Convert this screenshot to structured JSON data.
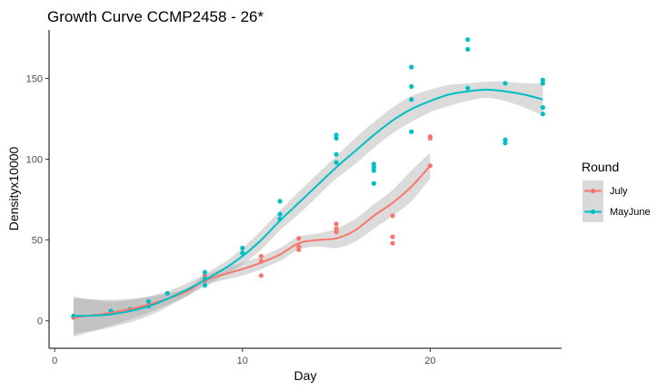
{
  "chart_data": {
    "type": "scatter",
    "title": "Growth Curve CCMP2458 - 26*",
    "xlabel": "Day",
    "ylabel": "Densityx10000",
    "xlim": [
      -0.3,
      27.0
    ],
    "ylim": [
      -17,
      180
    ],
    "x_ticks": [
      0,
      10,
      20
    ],
    "y_ticks": [
      0,
      50,
      100,
      150
    ],
    "grid": false,
    "legend": {
      "title": "Round",
      "position": "right"
    },
    "series": [
      {
        "name": "July",
        "color": "#F8766D",
        "points": [
          [
            1,
            2
          ],
          [
            3,
            5
          ],
          [
            4,
            7
          ],
          [
            5,
            10
          ],
          [
            6,
            17
          ],
          [
            8,
            25
          ],
          [
            8,
            28
          ],
          [
            11,
            28
          ],
          [
            11,
            37
          ],
          [
            11,
            40
          ],
          [
            13,
            44
          ],
          [
            13,
            46
          ],
          [
            13,
            51
          ],
          [
            15,
            55
          ],
          [
            15,
            57
          ],
          [
            15,
            60
          ],
          [
            18,
            48
          ],
          [
            18,
            52
          ],
          [
            18,
            65
          ],
          [
            20,
            113
          ],
          [
            20,
            114
          ],
          [
            20,
            96
          ]
        ],
        "smooth": [
          [
            1,
            2
          ],
          [
            3,
            5
          ],
          [
            5,
            10
          ],
          [
            7,
            18
          ],
          [
            8,
            25
          ],
          [
            10,
            32
          ],
          [
            11,
            36
          ],
          [
            12,
            41
          ],
          [
            13,
            48
          ],
          [
            14,
            50
          ],
          [
            15,
            51
          ],
          [
            16,
            56
          ],
          [
            17,
            65
          ],
          [
            18,
            73
          ],
          [
            19,
            83
          ],
          [
            20,
            96
          ]
        ],
        "band_upper": [
          [
            1,
            14
          ],
          [
            3,
            13
          ],
          [
            5,
            15
          ],
          [
            7,
            20
          ],
          [
            8,
            28
          ],
          [
            10,
            36
          ],
          [
            11,
            40
          ],
          [
            12,
            45
          ],
          [
            13,
            52
          ],
          [
            14,
            54
          ],
          [
            15,
            57
          ],
          [
            16,
            63
          ],
          [
            17,
            72
          ],
          [
            18,
            81
          ],
          [
            19,
            93
          ],
          [
            20,
            104
          ]
        ],
        "band_lower": [
          [
            1,
            -10
          ],
          [
            3,
            -3
          ],
          [
            5,
            5
          ],
          [
            7,
            15
          ],
          [
            8,
            22
          ],
          [
            10,
            28
          ],
          [
            11,
            32
          ],
          [
            12,
            37
          ],
          [
            13,
            44
          ],
          [
            14,
            46
          ],
          [
            15,
            45
          ],
          [
            16,
            49
          ],
          [
            17,
            57
          ],
          [
            18,
            65
          ],
          [
            19,
            74
          ],
          [
            20,
            88
          ]
        ]
      },
      {
        "name": "MayJune",
        "color": "#00BFC4",
        "points": [
          [
            1,
            3
          ],
          [
            3,
            6
          ],
          [
            4,
            7
          ],
          [
            5,
            9
          ],
          [
            5,
            12
          ],
          [
            6,
            17
          ],
          [
            8,
            22
          ],
          [
            8,
            26
          ],
          [
            8,
            30
          ],
          [
            10,
            42
          ],
          [
            10,
            45
          ],
          [
            12,
            63
          ],
          [
            12,
            66
          ],
          [
            12,
            74
          ],
          [
            15,
            98
          ],
          [
            15,
            103
          ],
          [
            15,
            113
          ],
          [
            15,
            115
          ],
          [
            17,
            85
          ],
          [
            17,
            93
          ],
          [
            17,
            95
          ],
          [
            17,
            97
          ],
          [
            19,
            117
          ],
          [
            19,
            137
          ],
          [
            19,
            145
          ],
          [
            19,
            157
          ],
          [
            22,
            144
          ],
          [
            22,
            168
          ],
          [
            22,
            174
          ],
          [
            24,
            110
          ],
          [
            24,
            112
          ],
          [
            24,
            147
          ],
          [
            26,
            128
          ],
          [
            26,
            132
          ],
          [
            26,
            147
          ],
          [
            26,
            149
          ]
        ],
        "smooth": [
          [
            1,
            3
          ],
          [
            3,
            4
          ],
          [
            5,
            9
          ],
          [
            7,
            19
          ],
          [
            9,
            32
          ],
          [
            10,
            40
          ],
          [
            11,
            50
          ],
          [
            12,
            62
          ],
          [
            13,
            73
          ],
          [
            14,
            84
          ],
          [
            15,
            95
          ],
          [
            16,
            105
          ],
          [
            17,
            115
          ],
          [
            18,
            124
          ],
          [
            19,
            131
          ],
          [
            20,
            136
          ],
          [
            21,
            140
          ],
          [
            22,
            142
          ],
          [
            23,
            143
          ],
          [
            24,
            142
          ],
          [
            25,
            140
          ],
          [
            26,
            137
          ]
        ],
        "band_upper": [
          [
            1,
            15
          ],
          [
            3,
            12
          ],
          [
            5,
            15
          ],
          [
            7,
            23
          ],
          [
            9,
            36
          ],
          [
            10,
            45
          ],
          [
            11,
            56
          ],
          [
            12,
            68
          ],
          [
            13,
            80
          ],
          [
            14,
            91
          ],
          [
            15,
            102
          ],
          [
            16,
            113
          ],
          [
            17,
            123
          ],
          [
            18,
            132
          ],
          [
            19,
            139
          ],
          [
            20,
            143
          ],
          [
            21,
            146
          ],
          [
            22,
            147
          ],
          [
            23,
            148
          ],
          [
            24,
            148
          ],
          [
            25,
            147
          ],
          [
            26,
            147
          ]
        ],
        "band_lower": [
          [
            1,
            -8
          ],
          [
            3,
            -4
          ],
          [
            5,
            3
          ],
          [
            7,
            15
          ],
          [
            9,
            28
          ],
          [
            10,
            35
          ],
          [
            11,
            44
          ],
          [
            12,
            56
          ],
          [
            13,
            66
          ],
          [
            14,
            77
          ],
          [
            15,
            88
          ],
          [
            16,
            97
          ],
          [
            17,
            107
          ],
          [
            18,
            116
          ],
          [
            19,
            123
          ],
          [
            20,
            129
          ],
          [
            21,
            133
          ],
          [
            22,
            136
          ],
          [
            23,
            138
          ],
          [
            24,
            136
          ],
          [
            25,
            132
          ],
          [
            26,
            127
          ]
        ]
      }
    ]
  }
}
